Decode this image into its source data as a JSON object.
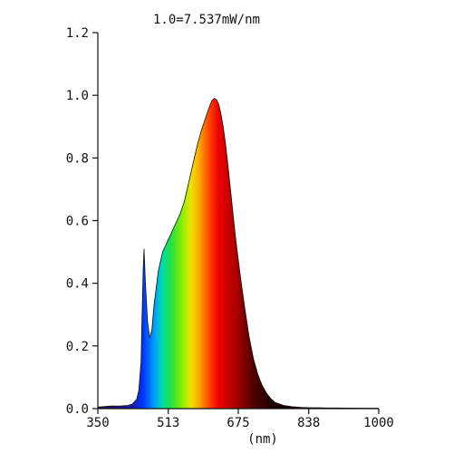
{
  "chart_data": {
    "type": "area",
    "title": "1.0=7.537mW/nm",
    "xlabel": "(nm)",
    "ylabel": "",
    "xlim": [
      350,
      1000
    ],
    "ylim": [
      0,
      1.2
    ],
    "xticks": [
      "350",
      "513",
      "675",
      "838",
      "1000"
    ],
    "xtick_values": [
      350,
      513,
      675,
      838,
      1000
    ],
    "yticks": [
      "0.0",
      "0.2",
      "0.4",
      "0.6",
      "0.8",
      "1.0",
      "1.2"
    ],
    "ytick_values": [
      0.0,
      0.2,
      0.4,
      0.6,
      0.8,
      1.0,
      1.2
    ],
    "grid": false,
    "fill": "spectral-gradient",
    "x": [
      350,
      380,
      400,
      420,
      430,
      440,
      445,
      450,
      452,
      455,
      457,
      460,
      465,
      470,
      475,
      480,
      490,
      500,
      510,
      520,
      530,
      540,
      550,
      560,
      570,
      580,
      590,
      600,
      610,
      615,
      620,
      625,
      630,
      635,
      640,
      645,
      650,
      660,
      670,
      680,
      690,
      700,
      710,
      720,
      730,
      740,
      750,
      760,
      780,
      800,
      820,
      840,
      860,
      880,
      900,
      1000
    ],
    "y": [
      0.005,
      0.008,
      0.008,
      0.01,
      0.015,
      0.03,
      0.06,
      0.15,
      0.27,
      0.45,
      0.51,
      0.4,
      0.28,
      0.225,
      0.25,
      0.33,
      0.44,
      0.5,
      0.53,
      0.56,
      0.59,
      0.62,
      0.66,
      0.72,
      0.78,
      0.84,
      0.89,
      0.93,
      0.97,
      0.985,
      0.99,
      0.985,
      0.97,
      0.94,
      0.9,
      0.85,
      0.79,
      0.66,
      0.53,
      0.42,
      0.32,
      0.23,
      0.16,
      0.11,
      0.075,
      0.05,
      0.032,
      0.02,
      0.01,
      0.006,
      0.004,
      0.003,
      0.003,
      0.002,
      0.002,
      0.001
    ]
  }
}
